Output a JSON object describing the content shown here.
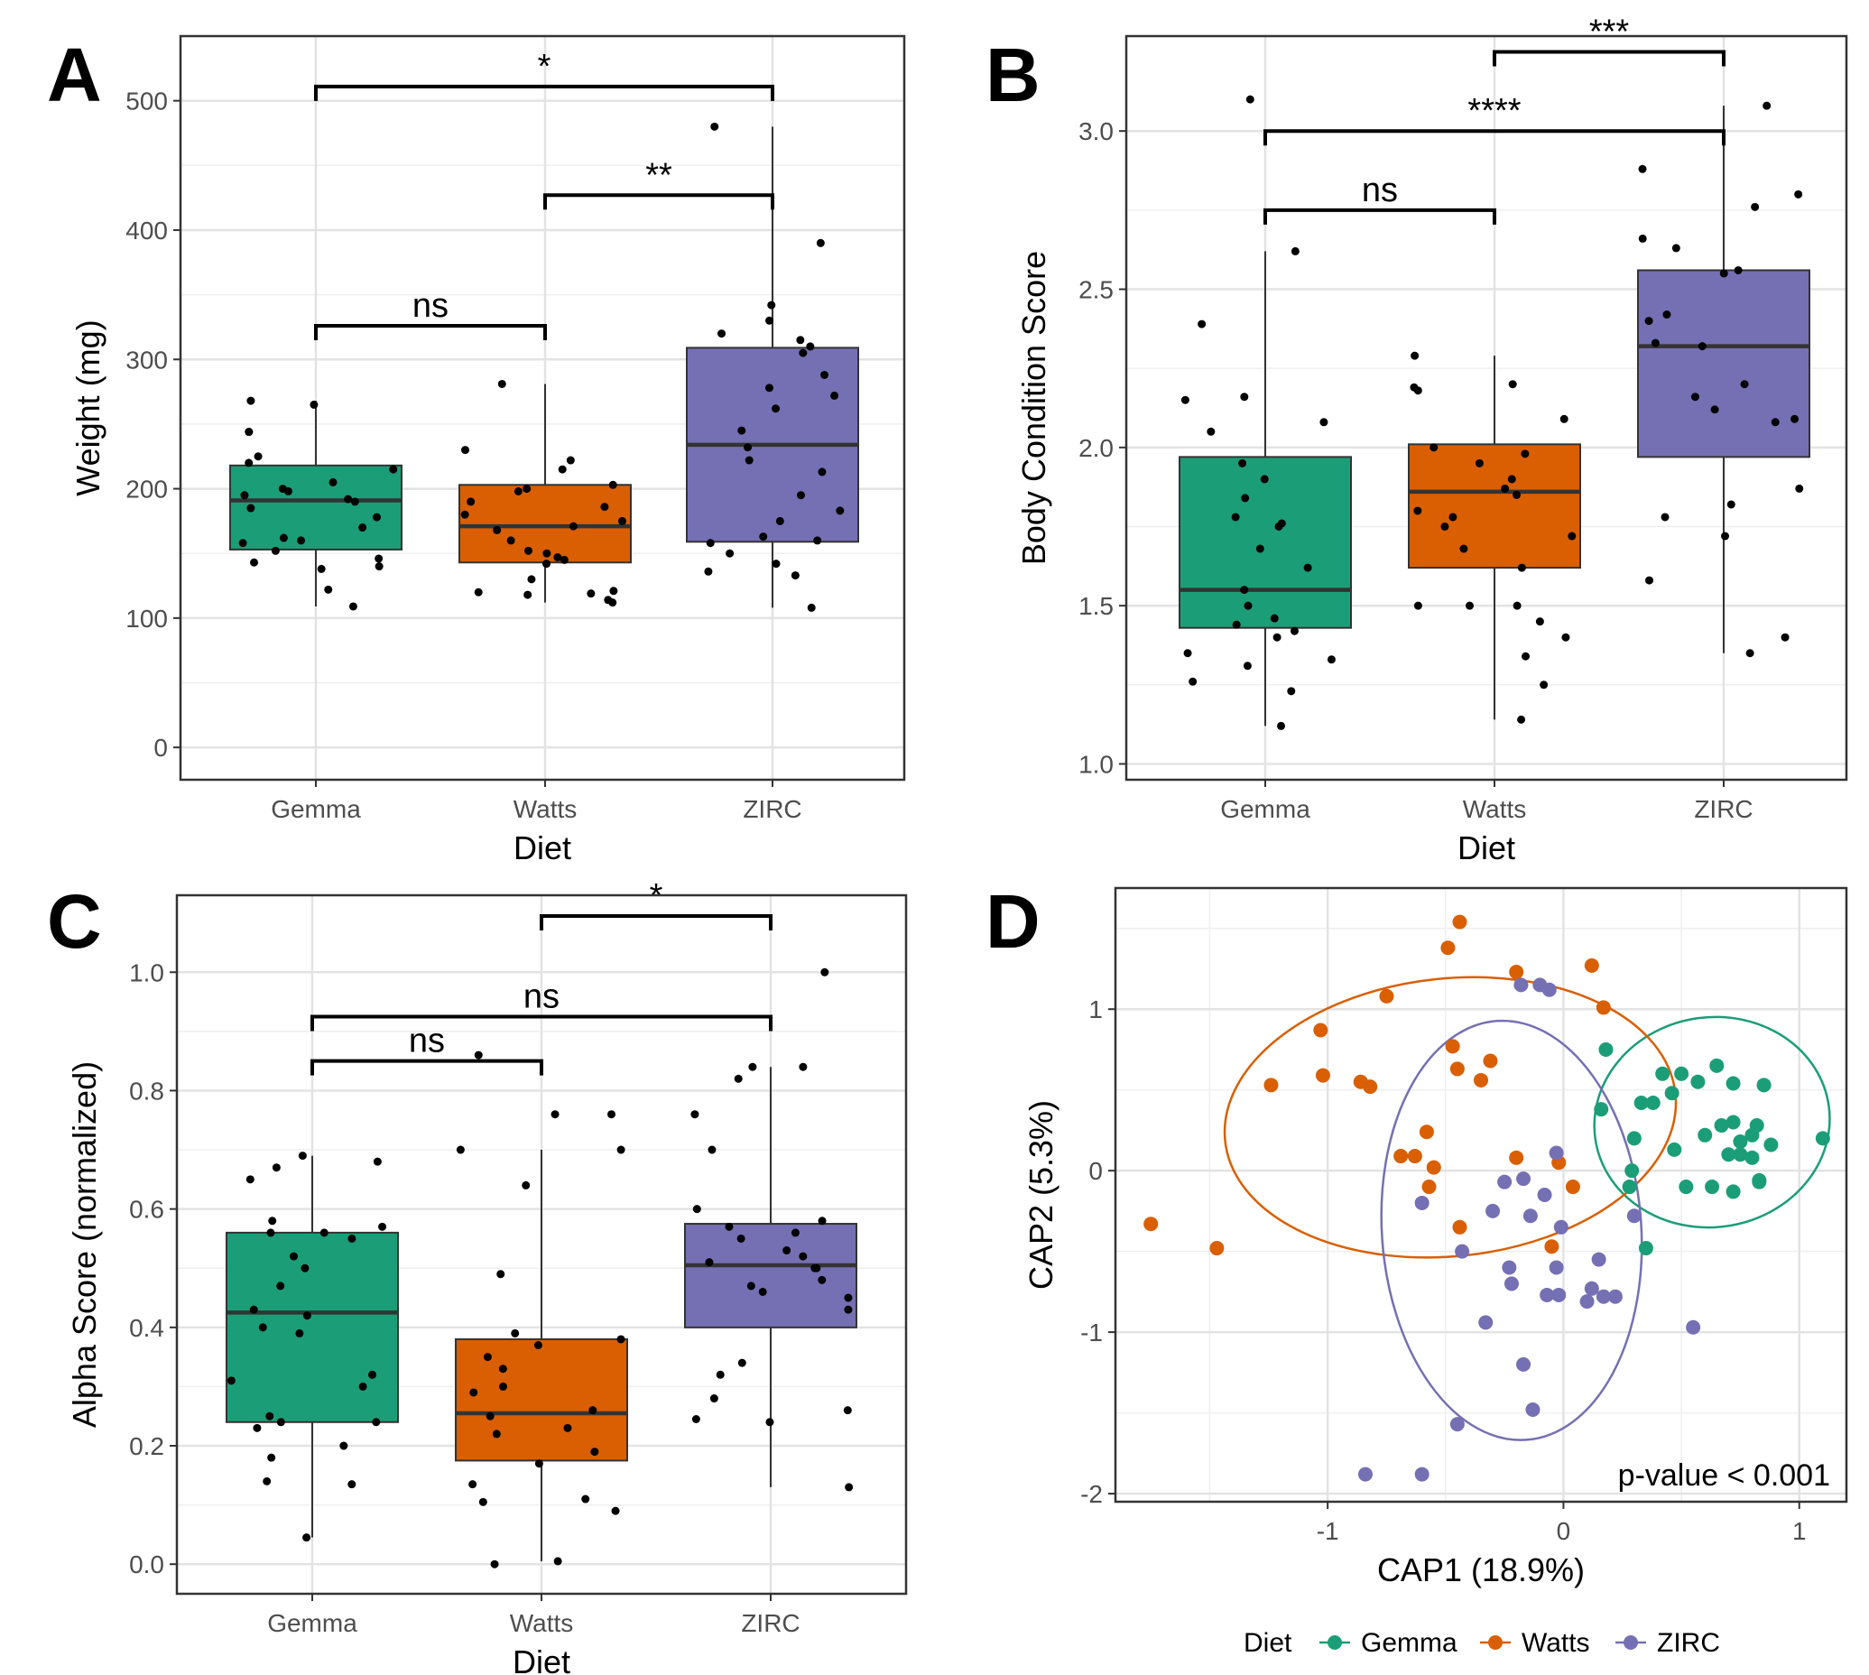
{
  "colors": {
    "Gemma": "#1b9e77",
    "Watts": "#d95f02",
    "ZIRC": "#7570b3",
    "points": "#000000",
    "grid": "#e3e3e3",
    "panel_border": "#333333"
  },
  "chart_data": [
    {
      "panel": "A",
      "type": "box",
      "categories": [
        "Gemma",
        "Watts",
        "ZIRC"
      ],
      "xlabel": "Diet",
      "ylabel": "Weight (mg)",
      "ylim": [
        -25,
        550
      ],
      "yticks": [
        0,
        100,
        200,
        300,
        400,
        500
      ],
      "grid": true,
      "boxes": [
        {
          "name": "Gemma",
          "q1": 153,
          "median": 191,
          "q3": 218,
          "whisker_low": 109,
          "whisker_high": 268
        },
        {
          "name": "Watts",
          "q1": 143,
          "median": 171,
          "q3": 203,
          "whisker_low": 112,
          "whisker_high": 281
        },
        {
          "name": "ZIRC",
          "q1": 159,
          "median": 234,
          "q3": 309,
          "whisker_low": 108,
          "whisker_high": 480
        }
      ],
      "points": {
        "Gemma": [
          109,
          122,
          140,
          138,
          143,
          146,
          152,
          158,
          160,
          162,
          170,
          178,
          185,
          190,
          192,
          195,
          198,
          200,
          205,
          215,
          220,
          225,
          244,
          265,
          268,
          244
        ],
        "Watts": [
          112,
          114,
          118,
          119,
          121,
          130,
          142,
          145,
          147,
          150,
          152,
          160,
          168,
          171,
          175,
          180,
          186,
          190,
          198,
          200,
          203,
          215,
          222,
          230,
          281,
          120
        ],
        "ZIRC": [
          108,
          133,
          136,
          142,
          150,
          158,
          160,
          163,
          175,
          183,
          195,
          213,
          222,
          232,
          245,
          262,
          272,
          278,
          288,
          305,
          310,
          315,
          320,
          330,
          342,
          390,
          480
        ]
      },
      "comparisons": [
        {
          "from": "Gemma",
          "to": "Watts",
          "y": 326,
          "label": "ns"
        },
        {
          "from": "Watts",
          "to": "ZIRC",
          "y": 427,
          "label": "**"
        },
        {
          "from": "Gemma",
          "to": "ZIRC",
          "y": 511,
          "label": "*"
        }
      ]
    },
    {
      "panel": "B",
      "type": "box",
      "categories": [
        "Gemma",
        "Watts",
        "ZIRC"
      ],
      "xlabel": "Diet",
      "ylabel": "Body Condition Score",
      "ylim": [
        0.95,
        3.3
      ],
      "yticks": [
        1.0,
        1.5,
        2.0,
        2.5,
        3.0
      ],
      "grid": true,
      "boxes": [
        {
          "name": "Gemma",
          "q1": 1.43,
          "median": 1.55,
          "q3": 1.97,
          "whisker_low": 1.12,
          "whisker_high": 2.62
        },
        {
          "name": "Watts",
          "q1": 1.62,
          "median": 1.86,
          "q3": 2.01,
          "whisker_low": 1.14,
          "whisker_high": 2.29
        },
        {
          "name": "ZIRC",
          "q1": 1.97,
          "median": 2.32,
          "q3": 2.56,
          "whisker_low": 1.35,
          "whisker_high": 3.08
        }
      ],
      "points": {
        "Gemma": [
          1.12,
          1.23,
          1.26,
          1.31,
          1.33,
          1.35,
          1.4,
          1.42,
          1.44,
          1.46,
          1.5,
          1.55,
          1.62,
          1.68,
          1.75,
          1.76,
          1.78,
          1.84,
          1.9,
          1.95,
          2.05,
          2.08,
          2.15,
          2.16,
          2.39,
          2.62,
          3.1
        ],
        "Watts": [
          1.14,
          1.25,
          1.34,
          1.4,
          1.45,
          1.5,
          1.5,
          1.5,
          1.62,
          1.68,
          1.72,
          1.75,
          1.78,
          1.8,
          1.85,
          1.87,
          1.9,
          1.95,
          1.98,
          2.0,
          2.09,
          2.18,
          2.19,
          2.2,
          2.29
        ],
        "ZIRC": [
          1.35,
          1.4,
          1.58,
          1.72,
          1.78,
          1.82,
          1.87,
          2.08,
          2.09,
          2.12,
          2.16,
          2.2,
          2.32,
          2.33,
          2.4,
          2.42,
          2.55,
          2.56,
          2.63,
          2.66,
          2.76,
          2.8,
          2.88,
          3.08
        ]
      },
      "comparisons": [
        {
          "from": "Gemma",
          "to": "Watts",
          "y": 2.75,
          "label": "ns"
        },
        {
          "from": "Gemma",
          "to": "ZIRC",
          "y": 3.0,
          "label": "****"
        },
        {
          "from": "Watts",
          "to": "ZIRC",
          "y": 3.25,
          "label": "***"
        }
      ]
    },
    {
      "panel": "C",
      "type": "box",
      "categories": [
        "Gemma",
        "Watts",
        "ZIRC"
      ],
      "xlabel": "Diet",
      "ylabel": "Alpha Score (normalized)",
      "ylim": [
        -0.05,
        1.13
      ],
      "yticks": [
        0.0,
        0.2,
        0.4,
        0.6,
        0.8,
        1.0
      ],
      "grid": true,
      "boxes": [
        {
          "name": "Gemma",
          "q1": 0.24,
          "median": 0.425,
          "q3": 0.56,
          "whisker_low": 0.045,
          "whisker_high": 0.69
        },
        {
          "name": "Watts",
          "q1": 0.175,
          "median": 0.255,
          "q3": 0.38,
          "whisker_low": 0.005,
          "whisker_high": 0.7
        },
        {
          "name": "ZIRC",
          "q1": 0.4,
          "median": 0.505,
          "q3": 0.575,
          "whisker_low": 0.13,
          "whisker_high": 0.84
        }
      ],
      "points": {
        "Gemma": [
          0.045,
          0.135,
          0.14,
          0.18,
          0.2,
          0.23,
          0.24,
          0.24,
          0.25,
          0.3,
          0.31,
          0.32,
          0.39,
          0.4,
          0.42,
          0.43,
          0.47,
          0.5,
          0.52,
          0.55,
          0.56,
          0.56,
          0.57,
          0.58,
          0.65,
          0.67,
          0.68,
          0.69
        ],
        "Watts": [
          0.0,
          0.005,
          0.09,
          0.105,
          0.11,
          0.135,
          0.17,
          0.19,
          0.22,
          0.23,
          0.25,
          0.26,
          0.29,
          0.3,
          0.33,
          0.35,
          0.37,
          0.38,
          0.39,
          0.49,
          0.64,
          0.7,
          0.7,
          0.76,
          0.76,
          0.86
        ],
        "ZIRC": [
          0.13,
          0.24,
          0.245,
          0.26,
          0.28,
          0.32,
          0.34,
          0.43,
          0.45,
          0.46,
          0.47,
          0.48,
          0.5,
          0.5,
          0.51,
          0.52,
          0.53,
          0.55,
          0.56,
          0.57,
          0.58,
          0.6,
          0.7,
          0.76,
          0.82,
          0.84,
          0.84,
          1.0
        ]
      },
      "comparisons": [
        {
          "from": "Gemma",
          "to": "Watts",
          "y": 0.85,
          "label": "ns"
        },
        {
          "from": "Gemma",
          "to": "ZIRC",
          "y": 0.925,
          "label": "ns"
        },
        {
          "from": "Watts",
          "to": "ZIRC",
          "y": 1.095,
          "label": "*"
        }
      ]
    },
    {
      "panel": "D",
      "type": "scatter",
      "xlabel": "CAP1 (18.9%)",
      "ylabel": "CAP2 (5.3%)",
      "xlim": [
        -1.9,
        1.2
      ],
      "ylim": [
        -2.05,
        1.75
      ],
      "xticks": [
        -1,
        0,
        1
      ],
      "yticks": [
        -2,
        -1,
        0,
        1
      ],
      "grid": true,
      "annotation": "p-value < 0.001",
      "legend": {
        "title": "Diet",
        "position": "bottom",
        "entries": [
          "Gemma",
          "Watts",
          "ZIRC"
        ]
      },
      "series": [
        {
          "name": "Gemma",
          "points": [
            [
              0.18,
              0.75
            ],
            [
              0.5,
              0.6
            ],
            [
              0.57,
              0.55
            ],
            [
              0.65,
              0.65
            ],
            [
              0.72,
              0.54
            ],
            [
              0.85,
              0.53
            ],
            [
              0.42,
              0.6
            ],
            [
              0.46,
              0.48
            ],
            [
              0.38,
              0.42
            ],
            [
              0.33,
              0.42
            ],
            [
              0.16,
              0.38
            ],
            [
              0.3,
              0.2
            ],
            [
              0.6,
              0.22
            ],
            [
              0.67,
              0.28
            ],
            [
              0.72,
              0.3
            ],
            [
              0.75,
              0.18
            ],
            [
              0.8,
              0.22
            ],
            [
              0.82,
              0.28
            ],
            [
              0.88,
              0.16
            ],
            [
              0.7,
              0.1
            ],
            [
              0.75,
              0.1
            ],
            [
              0.8,
              0.08
            ],
            [
              0.83,
              -0.06
            ],
            [
              0.47,
              0.13
            ],
            [
              0.29,
              0.0
            ],
            [
              0.28,
              -0.1
            ],
            [
              0.52,
              -0.1
            ],
            [
              0.63,
              -0.1
            ],
            [
              0.72,
              -0.13
            ],
            [
              0.83,
              -0.07
            ],
            [
              1.1,
              0.2
            ],
            [
              0.35,
              -0.48
            ]
          ]
        },
        {
          "name": "Watts",
          "points": [
            [
              -0.44,
              1.54
            ],
            [
              -0.49,
              1.38
            ],
            [
              -0.2,
              1.23
            ],
            [
              0.12,
              1.27
            ],
            [
              0.17,
              1.01
            ],
            [
              -0.75,
              1.08
            ],
            [
              -1.03,
              0.87
            ],
            [
              -0.47,
              0.77
            ],
            [
              -0.31,
              0.68
            ],
            [
              -1.24,
              0.53
            ],
            [
              -1.02,
              0.59
            ],
            [
              -0.86,
              0.55
            ],
            [
              -0.82,
              0.52
            ],
            [
              -0.45,
              0.63
            ],
            [
              -0.35,
              0.56
            ],
            [
              -0.58,
              0.24
            ],
            [
              -0.69,
              0.09
            ],
            [
              -0.63,
              0.09
            ],
            [
              -0.55,
              0.02
            ],
            [
              -0.57,
              -0.1
            ],
            [
              -0.2,
              0.08
            ],
            [
              -0.02,
              0.05
            ],
            [
              0.04,
              -0.1
            ],
            [
              -0.44,
              -0.35
            ],
            [
              -0.05,
              -0.47
            ],
            [
              -1.47,
              -0.48
            ],
            [
              -1.75,
              -0.33
            ]
          ]
        },
        {
          "name": "ZIRC",
          "points": [
            [
              -0.18,
              1.15
            ],
            [
              -0.1,
              1.15
            ],
            [
              -0.06,
              1.12
            ],
            [
              -0.03,
              0.11
            ],
            [
              -0.25,
              -0.07
            ],
            [
              -0.17,
              -0.05
            ],
            [
              -0.08,
              -0.15
            ],
            [
              -0.6,
              -0.2
            ],
            [
              -0.3,
              -0.25
            ],
            [
              -0.14,
              -0.28
            ],
            [
              -0.01,
              -0.35
            ],
            [
              -0.43,
              -0.5
            ],
            [
              -0.23,
              -0.6
            ],
            [
              -0.22,
              -0.7
            ],
            [
              0.15,
              -0.55
            ],
            [
              0.3,
              -0.28
            ],
            [
              -0.03,
              -0.6
            ],
            [
              -0.07,
              -0.77
            ],
            [
              -0.02,
              -0.77
            ],
            [
              0.12,
              -0.73
            ],
            [
              0.1,
              -0.81
            ],
            [
              0.17,
              -0.78
            ],
            [
              0.22,
              -0.78
            ],
            [
              -0.33,
              -0.94
            ],
            [
              -0.17,
              -1.2
            ],
            [
              -0.13,
              -1.48
            ],
            [
              -0.45,
              -1.57
            ],
            [
              0.55,
              -0.97
            ],
            [
              -0.6,
              -1.88
            ],
            [
              -0.84,
              -1.88
            ]
          ]
        }
      ],
      "ellipses": [
        {
          "name": "Gemma",
          "cx": 0.63,
          "cy": 0.3,
          "rx": 0.5,
          "ry": 0.65,
          "angle_deg": -8
        },
        {
          "name": "Watts",
          "cx": -0.48,
          "cy": 0.33,
          "rx": 0.96,
          "ry": 0.86,
          "angle_deg": -6
        },
        {
          "name": "ZIRC",
          "cx": -0.22,
          "cy": -0.37,
          "rx": 0.55,
          "ry": 1.3,
          "angle_deg": -4
        }
      ]
    }
  ]
}
